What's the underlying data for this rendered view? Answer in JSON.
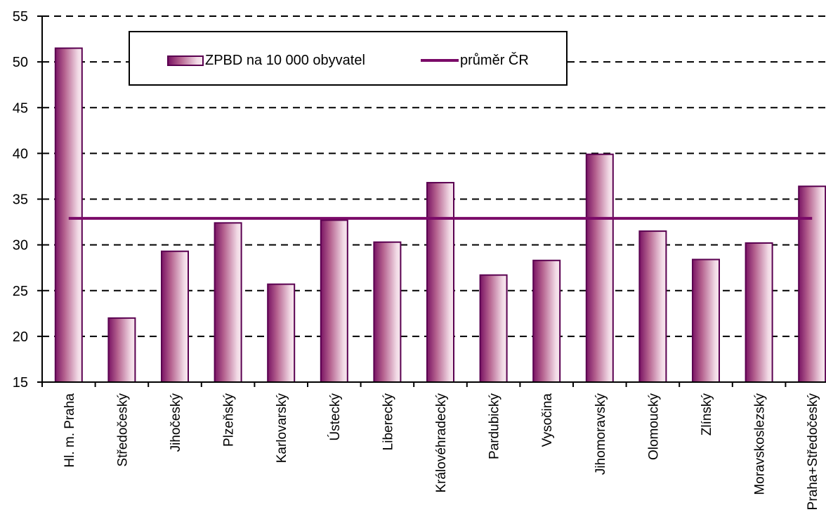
{
  "chart_data": {
    "type": "bar",
    "title": "",
    "xlabel": "",
    "ylabel": "",
    "ylim": [
      15,
      55
    ],
    "yticks": [
      15,
      20,
      25,
      30,
      35,
      40,
      45,
      50,
      55
    ],
    "grid": "dashed horizontal",
    "legend_position": "top-center",
    "categories": [
      "Hl. m. Praha",
      "Středočeský",
      "Jihočeský",
      "Plzeňský",
      "Karlovarský",
      "Ústecký",
      "Liberecký",
      "Královéhradecký",
      "Pardubický",
      "Vysočina",
      "Jihomoravský",
      "Olomoucký",
      "Zlínský",
      "Moravskoslezský",
      "Praha+Středočeský"
    ],
    "series": [
      {
        "name": "ZPBD na 10 000 obyvatel",
        "type": "bar",
        "values": [
          51.5,
          22.0,
          29.3,
          32.4,
          25.7,
          32.7,
          30.3,
          36.8,
          26.7,
          28.3,
          39.9,
          31.5,
          28.4,
          30.2,
          36.4
        ]
      },
      {
        "name": "průměr ČR",
        "type": "line",
        "value": 32.9
      }
    ],
    "colors": {
      "bar_dark": "#7a1464",
      "bar_mid": "#b5628f",
      "bar_light": "#f2dbe6",
      "bar_outline": "#5a0050",
      "average_line": "#7a0a68"
    }
  }
}
